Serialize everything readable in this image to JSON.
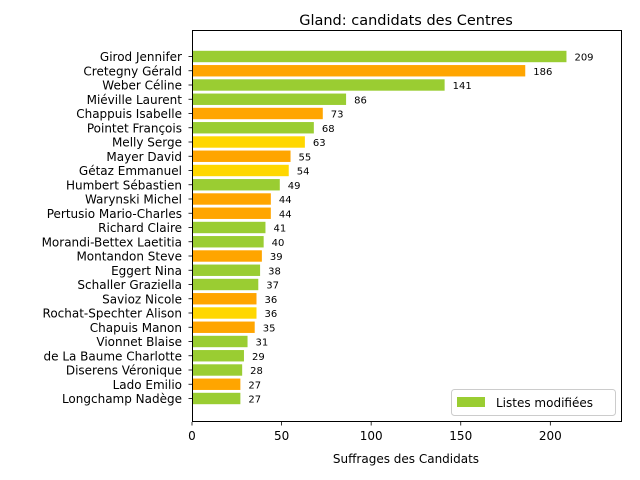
{
  "chart_data": {
    "type": "bar",
    "orientation": "horizontal",
    "title": "Gland: candidats des Centres",
    "xlabel": "Suffrages des Candidats",
    "ylabel": "",
    "xlim": [
      0,
      240
    ],
    "xticks": [
      0,
      50,
      100,
      150,
      200
    ],
    "grid": false,
    "legend": {
      "placement": "lower-right",
      "entries": [
        {
          "label": "Listes modifiées",
          "color": "#9ACD32"
        }
      ]
    },
    "colors": {
      "green": "#9ACD32",
      "orange": "#FFA500",
      "yellow": "#FFD700"
    },
    "categories": [
      "Girod Jennifer",
      "Cretegny Gérald",
      "Weber Céline",
      "Miéville Laurent",
      "Chappuis Isabelle",
      "Pointet François",
      "Melly Serge",
      "Mayer David",
      "Gétaz Emmanuel",
      "Humbert Sébastien",
      "Warynski Michel",
      "Pertusio Mario-Charles",
      "Richard Claire",
      "Morandi-Bettex Laetitia",
      "Montandon Steve",
      "Eggert Nina",
      "Schaller Graziella",
      "Savioz Nicole",
      "Rochat-Spechter Alison",
      "Chapuis Manon",
      "Vionnet Blaise",
      "de La Baume Charlotte",
      "Diserens Véronique",
      "Lado Emilio",
      "Longchamp Nadège"
    ],
    "values": [
      209,
      186,
      141,
      86,
      73,
      68,
      63,
      55,
      54,
      49,
      44,
      44,
      41,
      40,
      39,
      38,
      37,
      36,
      36,
      35,
      31,
      29,
      28,
      27,
      27
    ],
    "bar_colors": [
      "green",
      "orange",
      "green",
      "green",
      "orange",
      "green",
      "yellow",
      "orange",
      "yellow",
      "green",
      "orange",
      "orange",
      "green",
      "green",
      "orange",
      "green",
      "green",
      "orange",
      "yellow",
      "orange",
      "green",
      "green",
      "green",
      "orange",
      "green"
    ]
  }
}
